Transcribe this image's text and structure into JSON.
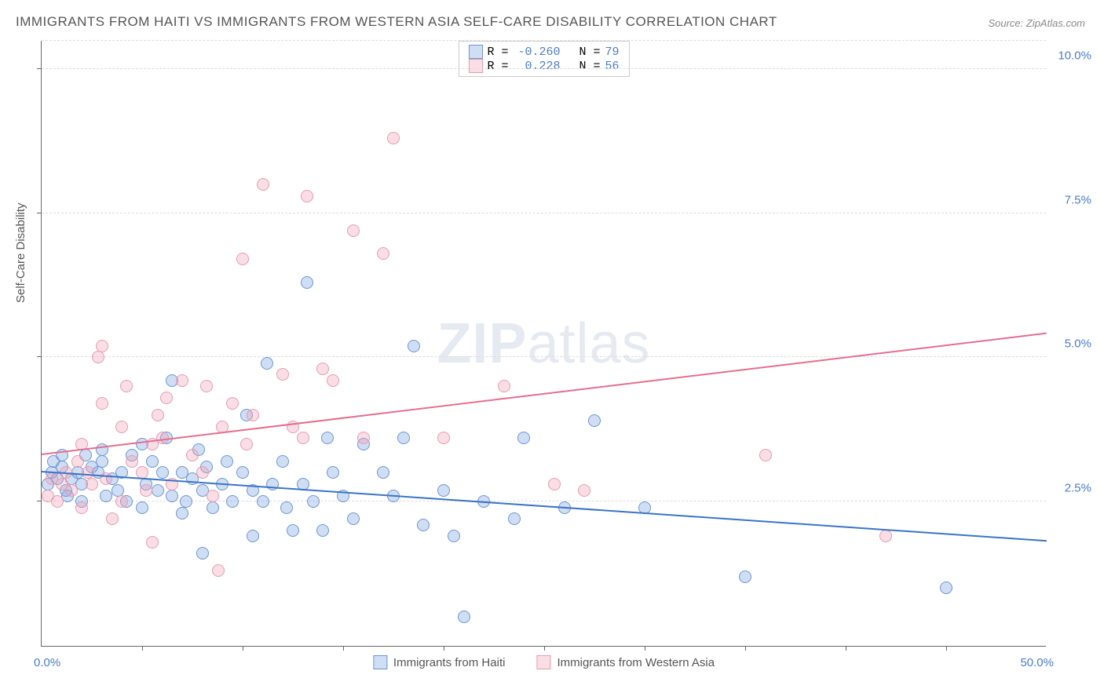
{
  "title": "IMMIGRANTS FROM HAITI VS IMMIGRANTS FROM WESTERN ASIA SELF-CARE DISABILITY CORRELATION CHART",
  "source": "Source: ZipAtlas.com",
  "watermark_bold": "ZIP",
  "watermark_light": "atlas",
  "y_axis_title": "Self-Care Disability",
  "chart": {
    "type": "scatter",
    "xlim": [
      0,
      50
    ],
    "ylim": [
      0,
      10.5
    ],
    "x_label_min": "0.0%",
    "x_label_max": "50.0%",
    "x_ticks": [
      5,
      10,
      15,
      20,
      25,
      30,
      35,
      40,
      45
    ],
    "y_ticks": [
      {
        "v": 2.5,
        "label": "2.5%"
      },
      {
        "v": 5.0,
        "label": "5.0%"
      },
      {
        "v": 7.5,
        "label": "7.5%"
      },
      {
        "v": 10.0,
        "label": "10.0%"
      }
    ],
    "grid_color": "#dddddd",
    "background_color": "#ffffff",
    "marker_radius": 8,
    "marker_border_width": 1.2,
    "series": [
      {
        "name": "Immigrants from Haiti",
        "fill": "rgba(120,160,220,0.35)",
        "stroke": "#6a96d6",
        "trend_color": "#3b74c4",
        "R": "-0.260",
        "N": "79",
        "trend": {
          "x1": 0,
          "y1": 3.0,
          "x2": 50,
          "y2": 1.8
        },
        "points": [
          [
            0.3,
            2.8
          ],
          [
            0.5,
            3.0
          ],
          [
            0.8,
            2.9
          ],
          [
            0.6,
            3.2
          ],
          [
            1.0,
            3.1
          ],
          [
            1.2,
            2.7
          ],
          [
            1.0,
            3.3
          ],
          [
            1.5,
            2.9
          ],
          [
            1.3,
            2.6
          ],
          [
            1.8,
            3.0
          ],
          [
            2.0,
            2.8
          ],
          [
            2.2,
            3.3
          ],
          [
            2.0,
            2.5
          ],
          [
            2.5,
            3.1
          ],
          [
            2.8,
            3.0
          ],
          [
            3.0,
            3.2
          ],
          [
            3.2,
            2.6
          ],
          [
            3.0,
            3.4
          ],
          [
            3.5,
            2.9
          ],
          [
            3.8,
            2.7
          ],
          [
            4.0,
            3.0
          ],
          [
            4.2,
            2.5
          ],
          [
            4.5,
            3.3
          ],
          [
            5.0,
            3.5
          ],
          [
            5.2,
            2.8
          ],
          [
            5.0,
            2.4
          ],
          [
            5.5,
            3.2
          ],
          [
            5.8,
            2.7
          ],
          [
            6.0,
            3.0
          ],
          [
            6.2,
            3.6
          ],
          [
            6.5,
            2.6
          ],
          [
            6.5,
            4.6
          ],
          [
            7.0,
            3.0
          ],
          [
            7.2,
            2.5
          ],
          [
            7.5,
            2.9
          ],
          [
            7.8,
            3.4
          ],
          [
            8.0,
            2.7
          ],
          [
            8.0,
            1.6
          ],
          [
            8.2,
            3.1
          ],
          [
            8.5,
            2.4
          ],
          [
            9.0,
            2.8
          ],
          [
            9.2,
            3.2
          ],
          [
            9.5,
            2.5
          ],
          [
            10.0,
            3.0
          ],
          [
            10.2,
            4.0
          ],
          [
            10.5,
            2.7
          ],
          [
            10.5,
            1.9
          ],
          [
            11.0,
            2.5
          ],
          [
            11.2,
            4.9
          ],
          [
            11.5,
            2.8
          ],
          [
            12.0,
            3.2
          ],
          [
            12.2,
            2.4
          ],
          [
            12.5,
            2.0
          ],
          [
            13.0,
            2.8
          ],
          [
            13.2,
            6.3
          ],
          [
            13.5,
            2.5
          ],
          [
            14.0,
            2.0
          ],
          [
            14.2,
            3.6
          ],
          [
            14.5,
            3.0
          ],
          [
            15.0,
            2.6
          ],
          [
            15.5,
            2.2
          ],
          [
            16.0,
            3.5
          ],
          [
            17.0,
            3.0
          ],
          [
            17.5,
            2.6
          ],
          [
            18.0,
            3.6
          ],
          [
            18.5,
            5.2
          ],
          [
            19.0,
            2.1
          ],
          [
            20.0,
            2.7
          ],
          [
            20.5,
            1.9
          ],
          [
            21.0,
            0.5
          ],
          [
            22.0,
            2.5
          ],
          [
            23.5,
            2.2
          ],
          [
            24.0,
            3.6
          ],
          [
            26.0,
            2.4
          ],
          [
            27.5,
            3.9
          ],
          [
            30.0,
            2.4
          ],
          [
            35.0,
            1.2
          ],
          [
            45.0,
            1.0
          ],
          [
            7.0,
            2.3
          ]
        ]
      },
      {
        "name": "Immigrants from Western Asia",
        "fill": "rgba(240,160,180,0.35)",
        "stroke": "#e89ab0",
        "trend_color": "#e36f8e",
        "R": "0.228",
        "N": "56",
        "trend": {
          "x1": 0,
          "y1": 3.3,
          "x2": 50,
          "y2": 5.4
        },
        "points": [
          [
            0.3,
            2.6
          ],
          [
            0.5,
            2.9
          ],
          [
            0.8,
            2.5
          ],
          [
            1.0,
            2.8
          ],
          [
            1.2,
            3.0
          ],
          [
            1.5,
            2.7
          ],
          [
            1.8,
            3.2
          ],
          [
            2.0,
            3.5
          ],
          [
            2.0,
            2.4
          ],
          [
            2.3,
            3.0
          ],
          [
            2.5,
            2.8
          ],
          [
            2.8,
            5.0
          ],
          [
            3.0,
            5.2
          ],
          [
            3.0,
            4.2
          ],
          [
            3.2,
            2.9
          ],
          [
            3.5,
            2.2
          ],
          [
            4.0,
            3.8
          ],
          [
            4.0,
            2.5
          ],
          [
            4.2,
            4.5
          ],
          [
            4.5,
            3.2
          ],
          [
            5.0,
            3.0
          ],
          [
            5.2,
            2.7
          ],
          [
            5.5,
            3.5
          ],
          [
            5.8,
            4.0
          ],
          [
            6.0,
            3.6
          ],
          [
            6.2,
            4.3
          ],
          [
            6.5,
            2.8
          ],
          [
            7.0,
            4.6
          ],
          [
            7.5,
            3.3
          ],
          [
            8.0,
            3.0
          ],
          [
            8.2,
            4.5
          ],
          [
            8.5,
            2.6
          ],
          [
            8.8,
            1.3
          ],
          [
            9.0,
            3.8
          ],
          [
            9.5,
            4.2
          ],
          [
            10.0,
            6.7
          ],
          [
            10.2,
            3.5
          ],
          [
            10.5,
            4.0
          ],
          [
            11.0,
            8.0
          ],
          [
            12.0,
            4.7
          ],
          [
            12.5,
            3.8
          ],
          [
            13.0,
            3.6
          ],
          [
            13.2,
            7.8
          ],
          [
            14.0,
            4.8
          ],
          [
            14.5,
            4.6
          ],
          [
            15.5,
            7.2
          ],
          [
            16.0,
            3.6
          ],
          [
            17.0,
            6.8
          ],
          [
            17.5,
            8.8
          ],
          [
            20.0,
            3.6
          ],
          [
            23.0,
            4.5
          ],
          [
            25.5,
            2.8
          ],
          [
            27.0,
            2.7
          ],
          [
            36.0,
            3.3
          ],
          [
            42.0,
            1.9
          ],
          [
            5.5,
            1.8
          ]
        ]
      }
    ]
  },
  "legend": {
    "R_label": "R =",
    "N_label": "N ="
  },
  "bottom_legend": {
    "series1": "Immigrants from Haiti",
    "series2": "Immigrants from Western Asia"
  }
}
